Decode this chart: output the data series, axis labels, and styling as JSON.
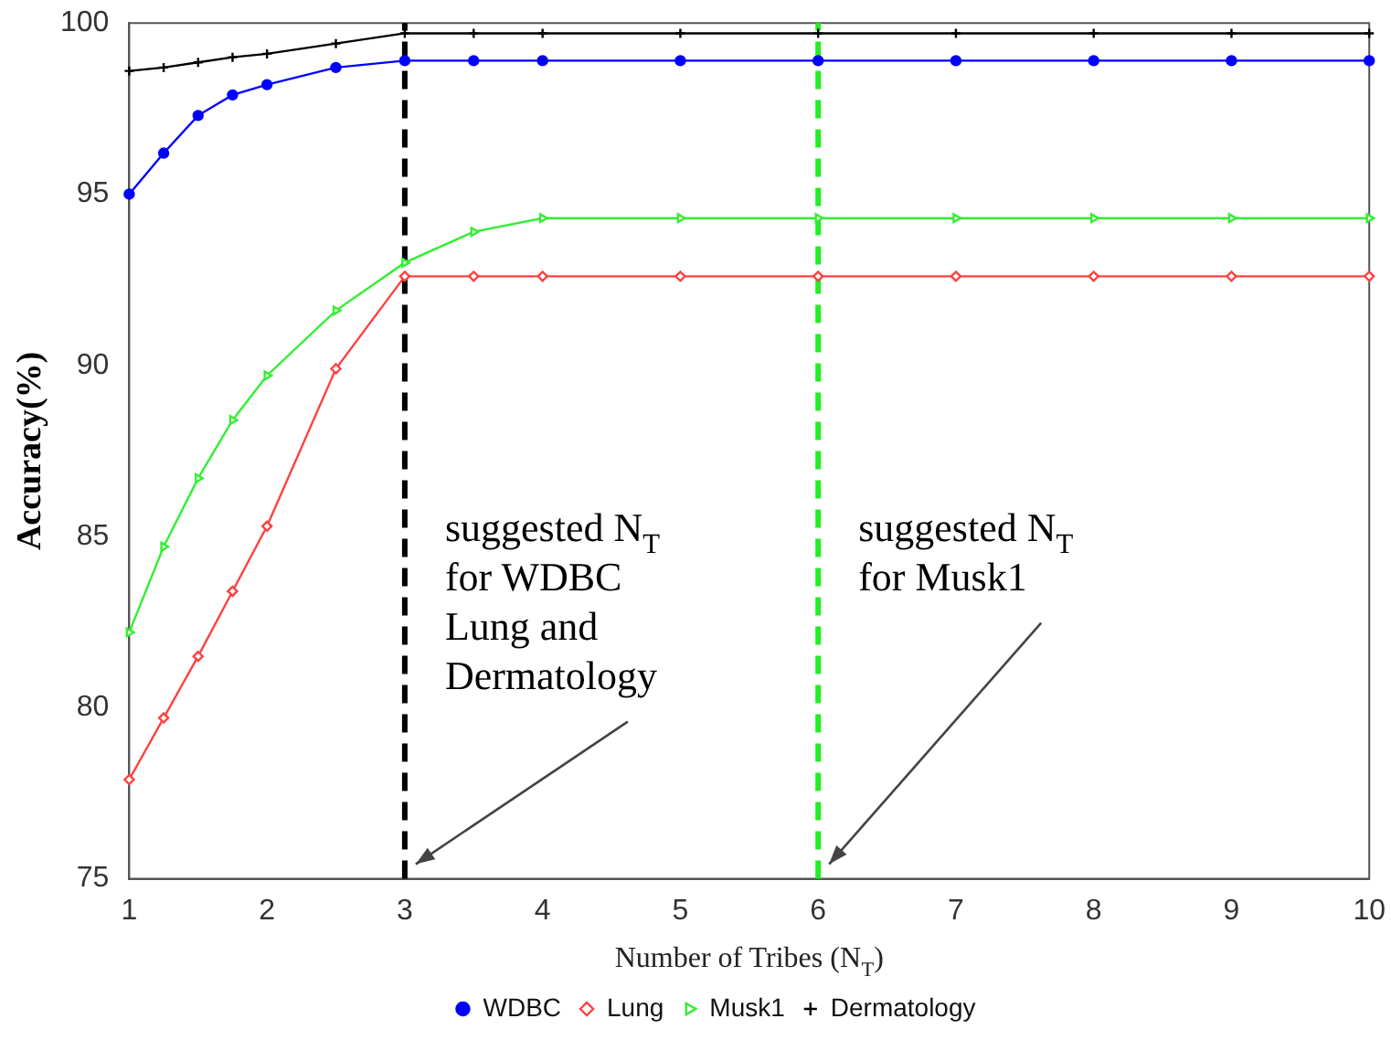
{
  "chart_data": {
    "type": "line",
    "xlabel": "Number of Tribes (N$_{T}$)",
    "ylabel": "Accuracy(%)",
    "x": [
      1,
      1.25,
      1.5,
      1.75,
      2,
      2.5,
      3,
      3.5,
      4,
      5,
      6,
      7,
      8,
      9,
      10
    ],
    "xlim": [
      1,
      10
    ],
    "xticks": [
      1,
      2,
      3,
      4,
      5,
      6,
      7,
      8,
      9,
      10
    ],
    "ylim": [
      75,
      100
    ],
    "yticks": [
      75,
      80,
      85,
      90,
      95,
      100
    ],
    "grid": false,
    "legend": "bottom",
    "series": [
      {
        "name": "WDBC",
        "color": "#0000ff",
        "marker": "circle",
        "values": [
          95.0,
          96.2,
          97.3,
          97.9,
          98.2,
          98.7,
          98.9,
          98.9,
          98.9,
          98.9,
          98.9,
          98.9,
          98.9,
          98.9,
          98.9
        ]
      },
      {
        "name": "Lung",
        "color": "#ff4040",
        "marker": "diamond",
        "values": [
          77.9,
          79.7,
          81.5,
          83.4,
          85.3,
          89.9,
          92.6,
          92.6,
          92.6,
          92.6,
          92.6,
          92.6,
          92.6,
          92.6,
          92.6
        ]
      },
      {
        "name": "Musk1",
        "color": "#33ee33",
        "marker": "triangle",
        "values": [
          82.2,
          84.7,
          86.7,
          88.4,
          89.7,
          91.6,
          93.0,
          93.9,
          94.3,
          94.3,
          94.3,
          94.3,
          94.3,
          94.3,
          94.3
        ]
      },
      {
        "name": "Dermatology",
        "color": "#000000",
        "marker": "cross",
        "values": [
          98.6,
          98.7,
          98.85,
          99.0,
          99.1,
          99.4,
          99.7,
          99.7,
          99.7,
          99.7,
          99.7,
          99.7,
          99.7,
          99.7,
          99.7
        ]
      }
    ],
    "ref_lines": [
      {
        "axis": "x",
        "value": 3,
        "color": "#000000",
        "line_style": "dashed"
      },
      {
        "axis": "x",
        "value": 6,
        "color": "#22ee22",
        "line_style": "dashed"
      }
    ],
    "annotations": [
      "suggested N$_{T}$\nfor WDBC\nLung and\nDermatology",
      "suggested N$_{T}$\nfor Musk1"
    ]
  }
}
